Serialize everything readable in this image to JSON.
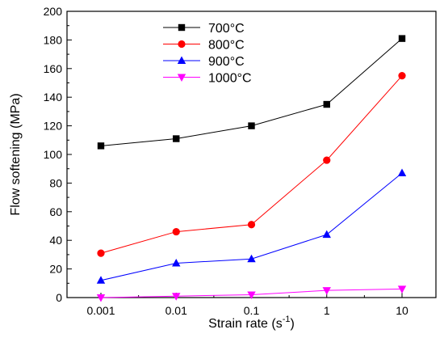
{
  "chart_data": {
    "type": "line",
    "x_scale": "log",
    "x": [
      0.001,
      0.01,
      0.1,
      1,
      10
    ],
    "x_tick_labels": [
      "0.001",
      "0.01",
      "0.1",
      "1",
      "10"
    ],
    "xlabel_main": "Strain rate (s",
    "xlabel_sup": "-1",
    "xlabel_end": ")",
    "ylabel": "Flow softening (MPa)",
    "ylim": [
      0,
      200
    ],
    "y_ticks": [
      0,
      20,
      40,
      60,
      80,
      100,
      120,
      140,
      160,
      180,
      200
    ],
    "grid": false,
    "legend_position": "top-center",
    "series": [
      {
        "name": "700°C",
        "marker": "square",
        "color": "#000000",
        "values": [
          106,
          111,
          120,
          135,
          181
        ]
      },
      {
        "name": "800°C",
        "marker": "circle",
        "color": "#ff0000",
        "values": [
          31,
          46,
          51,
          96,
          155
        ]
      },
      {
        "name": "900°C",
        "marker": "triangle-up",
        "color": "#0000ff",
        "values": [
          12,
          24,
          27,
          44,
          87
        ]
      },
      {
        "name": "1000°C",
        "marker": "triangle-down",
        "color": "#ff00ff",
        "values": [
          0,
          1,
          2,
          5,
          6
        ]
      }
    ]
  }
}
